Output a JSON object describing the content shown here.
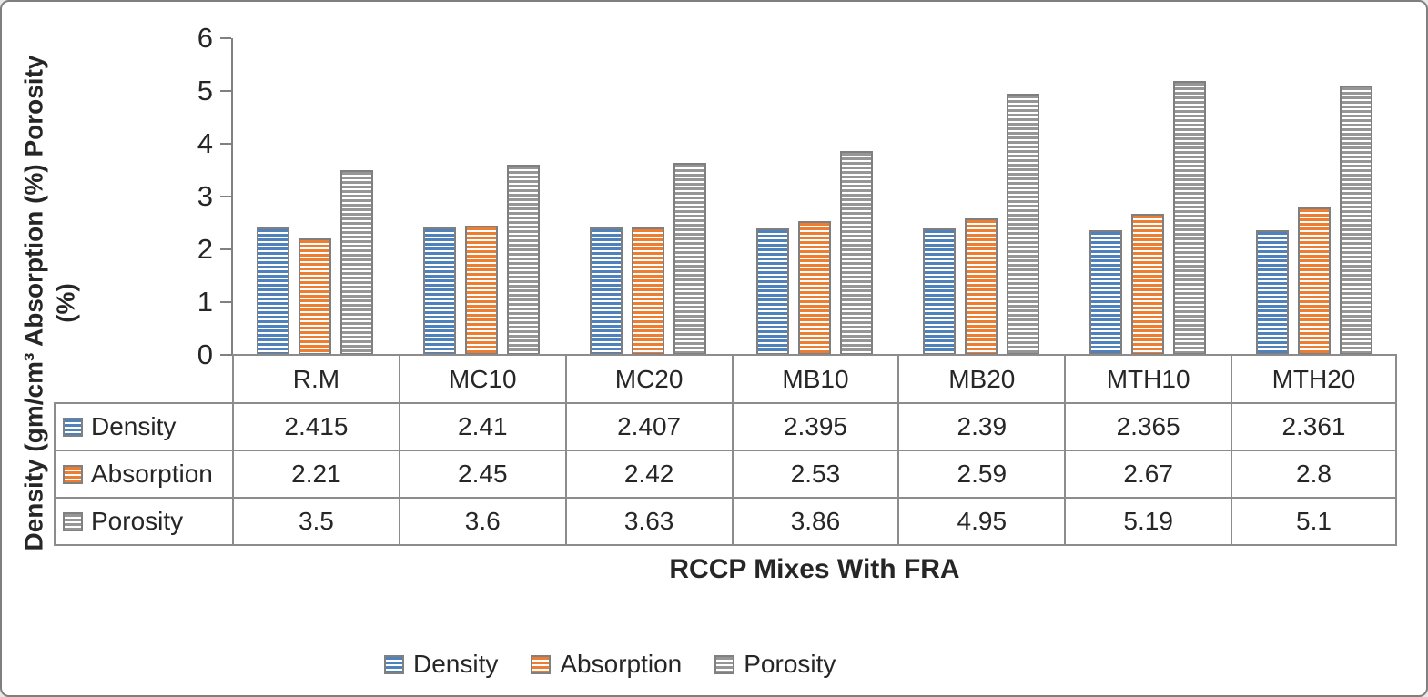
{
  "chart_data": {
    "type": "bar",
    "title": "",
    "xlabel": "RCCP Mixes With FRA",
    "ylabel_line1": "Density (gm/cm³ Absorption (%) Porosity",
    "ylabel_line2": "(%)",
    "categories": [
      "R.M",
      "MC10",
      "MC20",
      "MB10",
      "MB20",
      "MTH10",
      "MTH20"
    ],
    "series": [
      {
        "name": "Density",
        "color": "#4F81BD",
        "values": [
          2.415,
          2.41,
          2.407,
          2.395,
          2.39,
          2.365,
          2.361
        ]
      },
      {
        "name": "Absorption",
        "color": "#ED7D31",
        "values": [
          2.21,
          2.45,
          2.42,
          2.53,
          2.59,
          2.67,
          2.8
        ]
      },
      {
        "name": "Porosity",
        "color": "#969696",
        "values": [
          3.5,
          3.6,
          3.63,
          3.86,
          4.95,
          5.19,
          5.1
        ]
      }
    ],
    "ylim": [
      0,
      6
    ],
    "yticks": [
      0,
      1,
      2,
      3,
      4,
      5,
      6
    ],
    "grid": false,
    "legend_position": "bottom",
    "data_table_shown": true,
    "bar_fill_pattern": "horizontal-stripes"
  },
  "colors": {
    "bar_border": "#7F7F7F",
    "axis_line": "#808080",
    "table_border": "#8C8C8C",
    "text": "#262626",
    "frame_border": "#7F7F7F",
    "background": "#FFFFFF"
  }
}
